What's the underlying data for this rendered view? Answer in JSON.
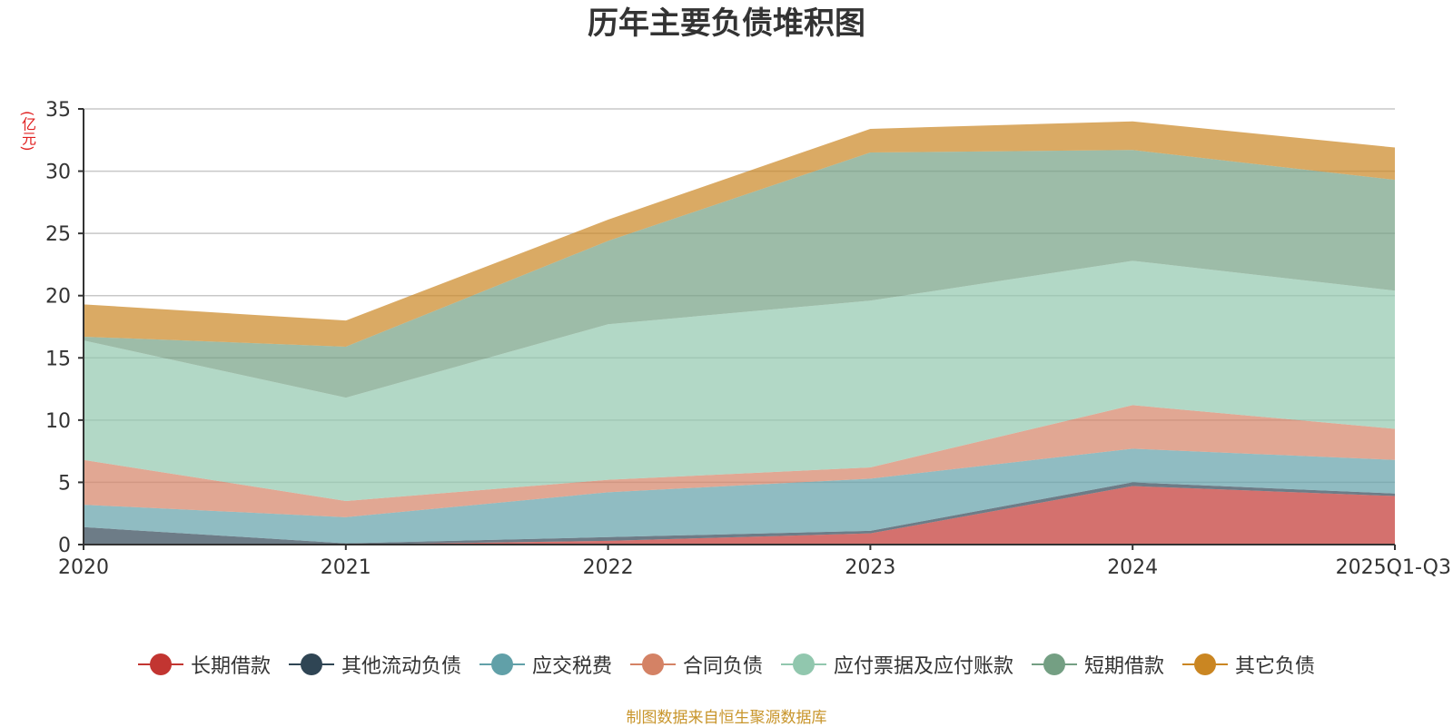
{
  "chart_data": {
    "type": "area",
    "stacked": true,
    "title": "历年主要负债堆积图",
    "unit_label": "(亿元)",
    "categories": [
      "2020",
      "2021",
      "2022",
      "2023",
      "2024",
      "2025Q1-Q3"
    ],
    "ylim": [
      0,
      35
    ],
    "yticks": [
      0,
      5,
      10,
      15,
      20,
      25,
      30,
      35
    ],
    "grid": true,
    "legend_position": "bottom-center",
    "series": [
      {
        "name": "长期借款",
        "color": "#c23531",
        "values": [
          0,
          0,
          0.3,
          0.9,
          4.7,
          3.9
        ]
      },
      {
        "name": "其他流动负债",
        "color": "#2f4554",
        "values": [
          1.4,
          0.1,
          0.3,
          0.2,
          0.3,
          0.2
        ]
      },
      {
        "name": "应交税费",
        "color": "#61a0a8",
        "values": [
          1.8,
          2.1,
          3.6,
          4.2,
          2.7,
          2.7
        ]
      },
      {
        "name": "合同负债",
        "color": "#d48265",
        "values": [
          3.6,
          1.3,
          1.0,
          0.9,
          3.5,
          2.5
        ]
      },
      {
        "name": "应付票据及应付账款",
        "color": "#91c7ae",
        "values": [
          9.6,
          8.3,
          12.5,
          13.4,
          11.6,
          11.1
        ]
      },
      {
        "name": "短期借款",
        "color": "#749f83",
        "values": [
          0.3,
          4.1,
          6.7,
          11.9,
          8.9,
          8.9
        ]
      },
      {
        "name": "其它负债",
        "color": "#ca8622",
        "values": [
          2.6,
          2.1,
          1.7,
          1.9,
          2.3,
          2.6
        ]
      }
    ]
  },
  "footer": {
    "source": "制图数据来自恒生聚源数据库"
  }
}
